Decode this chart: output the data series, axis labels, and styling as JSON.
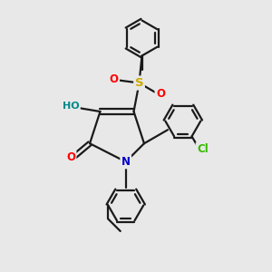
{
  "bg_color": "#e8e8e8",
  "bond_color": "#1a1a1a",
  "bond_width": 1.6,
  "atom_colors": {
    "O": "#ff0000",
    "N": "#0000cc",
    "S": "#ccaa00",
    "Cl": "#33bb00",
    "H_color": "#008888",
    "C": "#1a1a1a"
  },
  "fs": 8.5,
  "ring_r": 0.65
}
